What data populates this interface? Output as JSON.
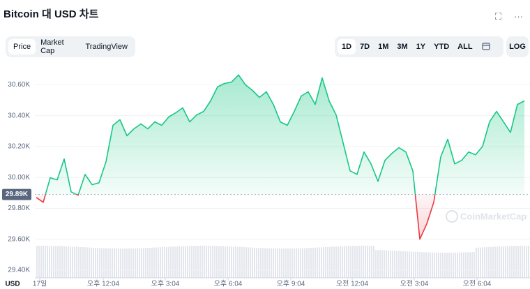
{
  "header": {
    "title": "Bitcoin 대 USD 차트"
  },
  "tabs": [
    "Price",
    "Market Cap",
    "TradingView"
  ],
  "ranges": [
    "1D",
    "7D",
    "1M",
    "3M",
    "1Y",
    "YTD",
    "ALL"
  ],
  "log": "LOG",
  "watermark": "CoinMarketCap",
  "chart_data": {
    "type": "line",
    "y_axis_label": "USD",
    "values": [
      29871,
      29839,
      29998,
      29985,
      30120,
      29907,
      29885,
      30020,
      29953,
      29966,
      30102,
      30338,
      30374,
      30270,
      30315,
      30347,
      30315,
      30360,
      30338,
      30392,
      30419,
      30451,
      30360,
      30405,
      30428,
      30496,
      30587,
      30609,
      30618,
      30664,
      30600,
      30564,
      30519,
      30555,
      30473,
      30360,
      30338,
      30428,
      30528,
      30555,
      30473,
      30645,
      30496,
      30405,
      30224,
      30043,
      30020,
      30165,
      30088,
      29975,
      30111,
      30156,
      30193,
      30165,
      30043,
      29600,
      29700,
      29839,
      30134,
      30247,
      30088,
      30111,
      30165,
      30147,
      30202,
      30360,
      30428,
      30360,
      30292,
      30473,
      30496
    ],
    "up_color": "#16c784",
    "down_color": "#ea3943",
    "reference": {
      "value": 29890,
      "label": "29.89K"
    },
    "xlim": [
      -0.2,
      70.8
    ],
    "xticks": [
      {
        "value": 0.5,
        "label": "17일"
      },
      {
        "value": 9.6,
        "label": "오후 12:04"
      },
      {
        "value": 18.5,
        "label": "오후 3:04"
      },
      {
        "value": 27.5,
        "label": "오후 6:04"
      },
      {
        "value": 36.5,
        "label": "오후 9:04"
      },
      {
        "value": 45.3,
        "label": "오전 12:04"
      },
      {
        "value": 54.2,
        "label": "오전 3:04"
      },
      {
        "value": 63.2,
        "label": "오전 6:04"
      }
    ],
    "ylim": [
      29350,
      30720
    ],
    "yticks": [
      {
        "value": 29400,
        "label": "29.40K"
      },
      {
        "value": 29600,
        "label": "29.60K"
      },
      {
        "value": 29800,
        "label": "29.80K"
      },
      {
        "value": 30000,
        "label": "30.00K"
      },
      {
        "value": 30200,
        "label": "30.20K"
      },
      {
        "value": 30400,
        "label": "30.40K"
      },
      {
        "value": 30600,
        "label": "30.60K"
      }
    ],
    "grid": true
  }
}
